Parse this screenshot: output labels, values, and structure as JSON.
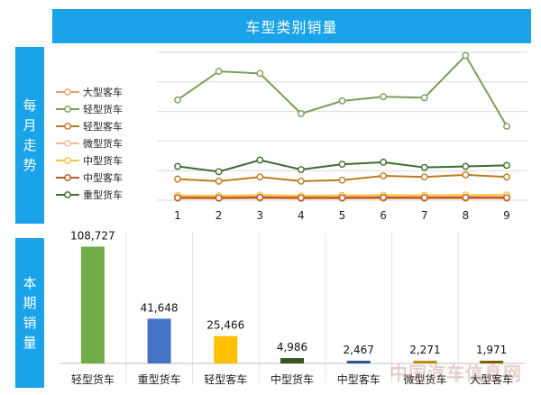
{
  "title": "车型类别销量",
  "sections": {
    "monthly": [
      "每",
      "月",
      "走",
      "势"
    ],
    "current": [
      "本",
      "期",
      "销",
      "量"
    ]
  },
  "watermark": "中国汽车信息网",
  "chart_data": [
    {
      "type": "line",
      "x": [
        1,
        2,
        3,
        4,
        5,
        6,
        7,
        8,
        9
      ],
      "series": [
        {
          "name": "大型客车",
          "color": "#e5a06a",
          "values": [
            1800,
            1700,
            1900,
            1600,
            1700,
            1800,
            1700,
            1800,
            1800
          ]
        },
        {
          "name": "轻型货车",
          "color": "#7a9e5a",
          "values": [
            95000,
            122000,
            120000,
            82000,
            94000,
            98000,
            97000,
            137000,
            70000
          ]
        },
        {
          "name": "轻型客车",
          "color": "#c07a20",
          "values": [
            20000,
            18000,
            22000,
            18000,
            19000,
            23000,
            22000,
            24000,
            22000
          ]
        },
        {
          "name": "微型货车",
          "color": "#f3b8a0",
          "values": [
            3200,
            3000,
            3600,
            3100,
            3300,
            3400,
            3200,
            3500,
            3300
          ]
        },
        {
          "name": "中型货车",
          "color": "#f5c542",
          "values": [
            4500,
            4200,
            4900,
            4300,
            4600,
            4800,
            4700,
            4900,
            4986
          ]
        },
        {
          "name": "中型客车",
          "color": "#c0561e",
          "values": [
            2400,
            2200,
            2700,
            2300,
            2400,
            2600,
            2500,
            2600,
            2467
          ]
        },
        {
          "name": "重型货车",
          "color": "#3f6b30",
          "values": [
            32000,
            27000,
            38000,
            29000,
            34000,
            36000,
            31000,
            32000,
            33000
          ]
        }
      ],
      "ylim": [
        0,
        140000
      ],
      "grid": true,
      "legend": "left"
    },
    {
      "type": "bar",
      "categories": [
        "轻型货车",
        "重型货车",
        "轻型客车",
        "中型货车",
        "中型客车",
        "微型货车",
        "大型客车"
      ],
      "values": [
        108727,
        41648,
        25466,
        4986,
        2467,
        2271,
        1971
      ],
      "labels": [
        "108,727",
        "41,648",
        "25,466",
        "4,986",
        "2,467",
        "2,271",
        "1,971"
      ],
      "colors": [
        "#70ad47",
        "#4472c4",
        "#ffc000",
        "#375623",
        "#2f5597",
        "#bf8f00",
        "#7f6000"
      ],
      "ylim": [
        0,
        110000
      ]
    }
  ]
}
